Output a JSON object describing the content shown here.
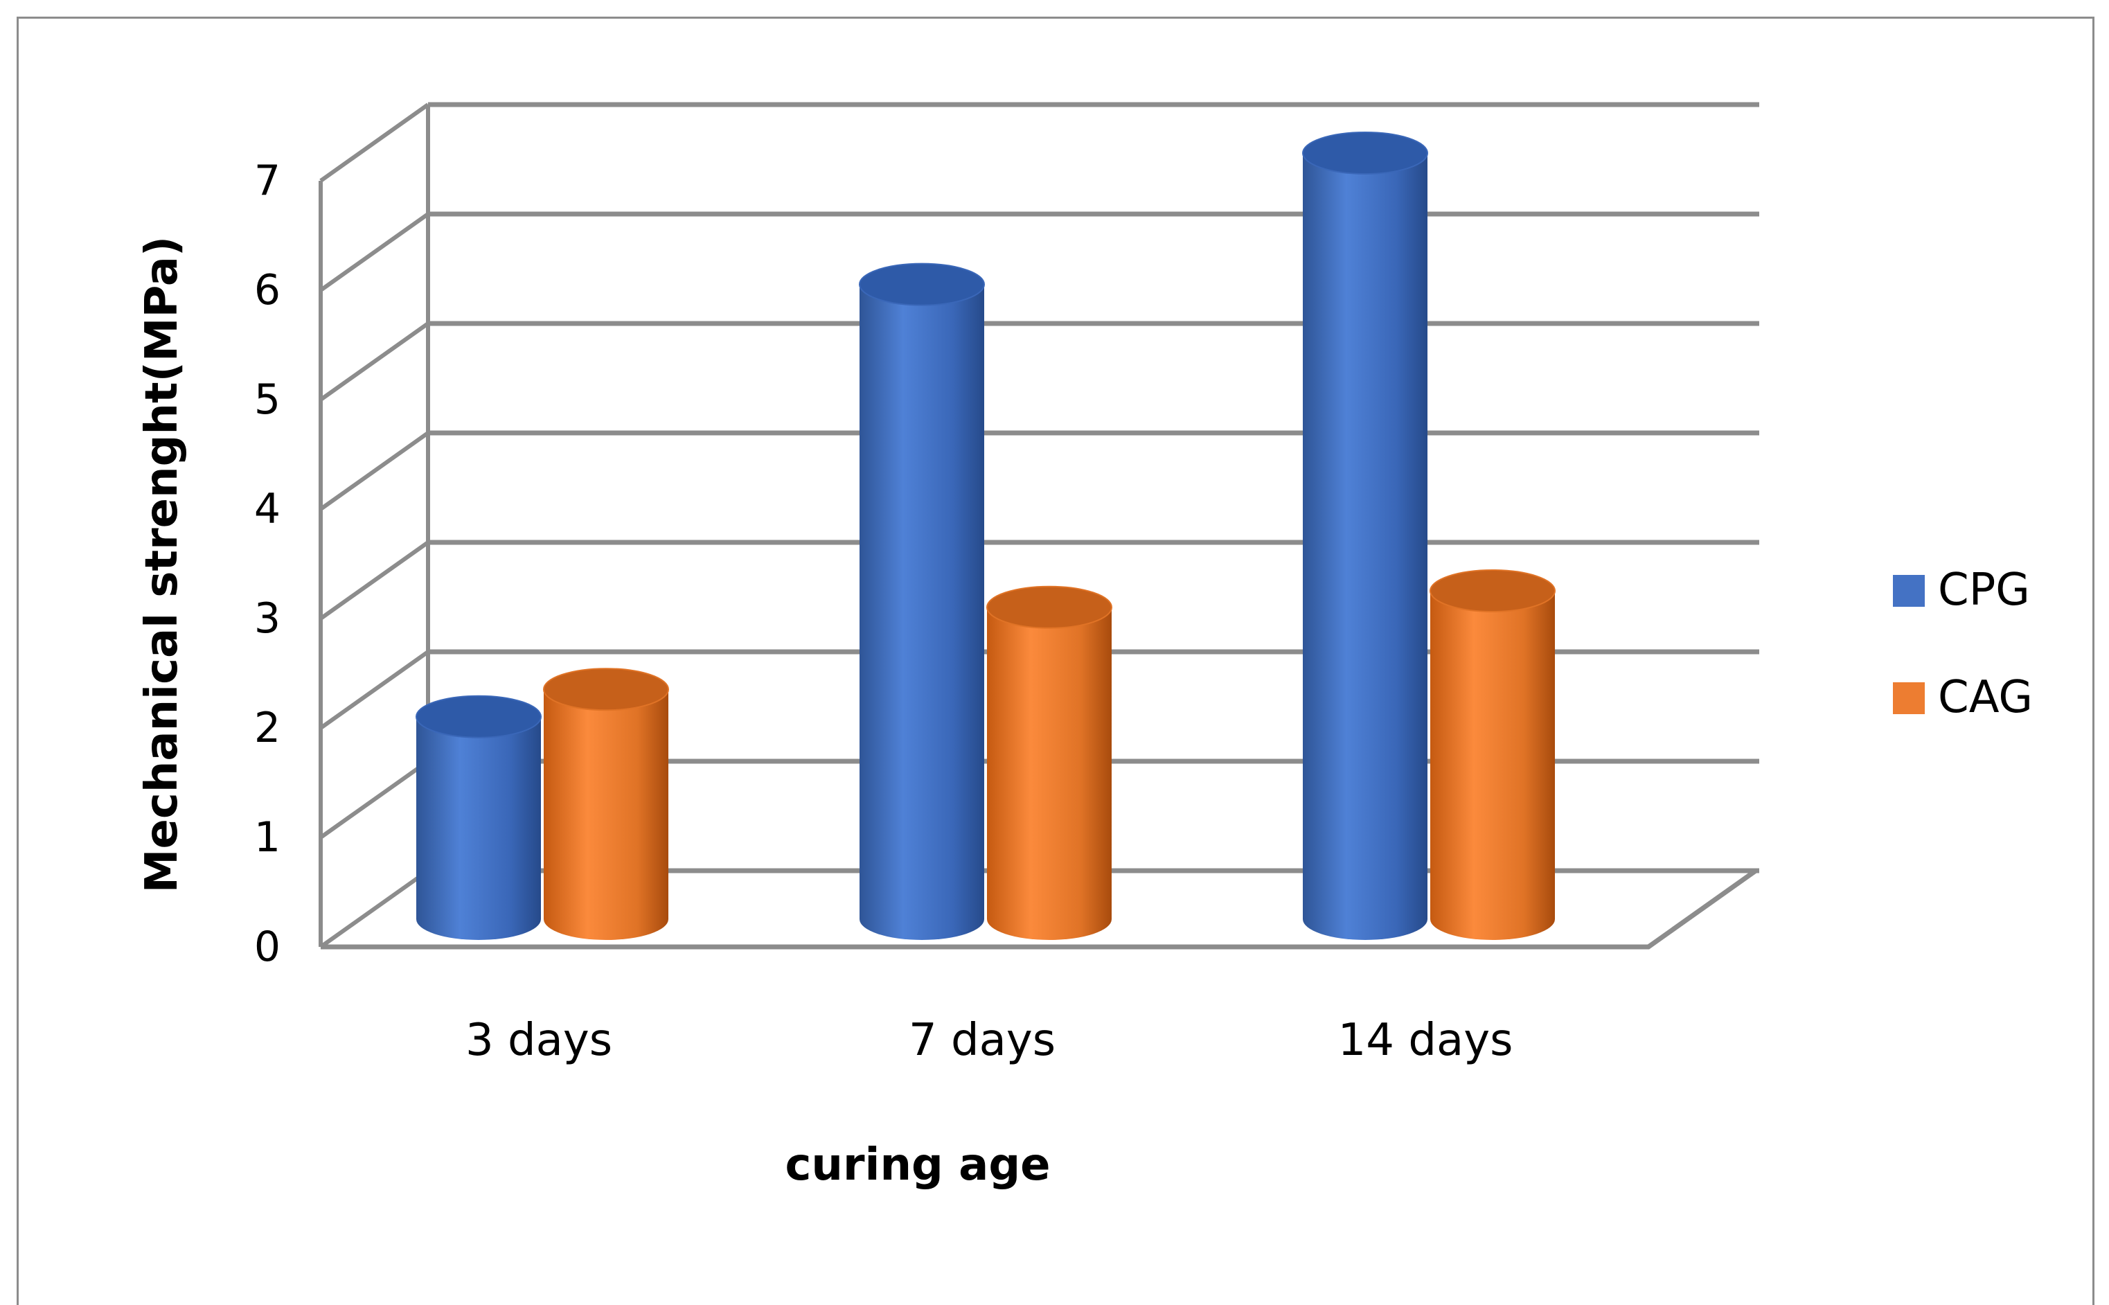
{
  "chart_data": {
    "type": "bar",
    "style": "3d-cylinder",
    "categories": [
      "3 days",
      "7 days",
      "14 days"
    ],
    "series": [
      {
        "name": "CPG",
        "values": [
          1.85,
          5.8,
          7.0
        ],
        "color": "#4472C4"
      },
      {
        "name": "CAG",
        "values": [
          2.1,
          2.85,
          3.0
        ],
        "color": "#ED7D31"
      }
    ],
    "xlabel": "curing age",
    "ylabel": "Mechanical strenght(MPa)",
    "ylim": [
      0,
      7
    ],
    "yticks": [
      "0",
      "1",
      "2",
      "3",
      "4",
      "5",
      "6",
      "7"
    ],
    "grid": true,
    "legend_position": "right"
  }
}
